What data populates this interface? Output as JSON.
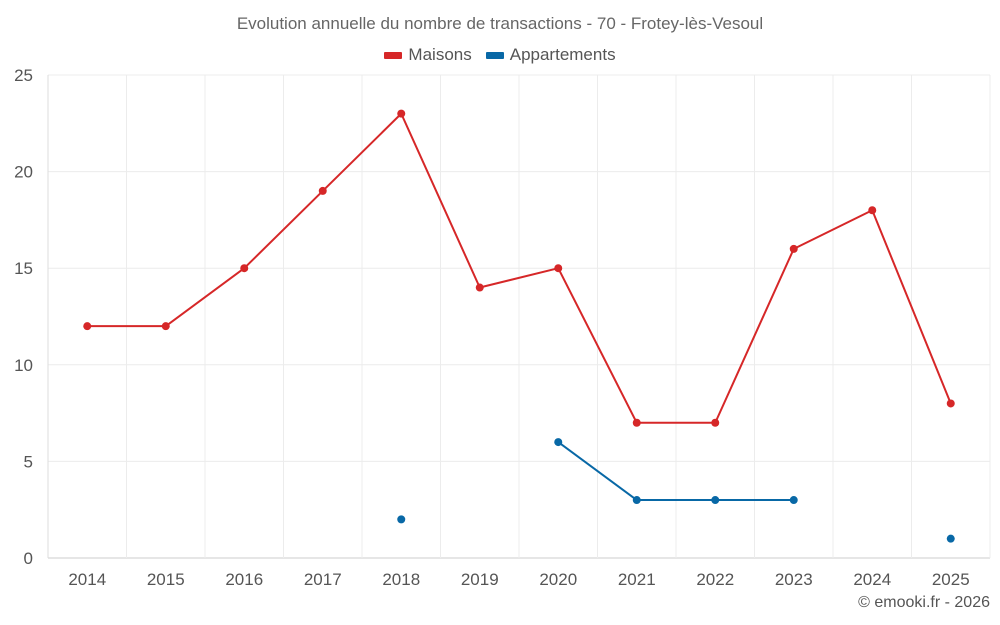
{
  "chart_data": {
    "type": "line",
    "title": "Evolution annuelle du nombre de transactions - 70 - Frotey-lès-Vesoul",
    "categories": [
      "2014",
      "2015",
      "2016",
      "2017",
      "2018",
      "2019",
      "2020",
      "2021",
      "2022",
      "2023",
      "2024",
      "2025"
    ],
    "series": [
      {
        "name": "Maisons",
        "color": "#d62728",
        "values": [
          12,
          12,
          15,
          19,
          23,
          14,
          15,
          7,
          7,
          16,
          18,
          8
        ]
      },
      {
        "name": "Appartements",
        "color": "#0868a6",
        "values": [
          null,
          null,
          null,
          null,
          2,
          null,
          6,
          3,
          3,
          3,
          null,
          1
        ]
      }
    ],
    "ylim": [
      0,
      25
    ],
    "yticks": [
      0,
      5,
      10,
      15,
      20,
      25
    ],
    "grid": true,
    "legend_position": "top-center"
  },
  "footer": {
    "credit": "© emooki.fr - 2026"
  }
}
